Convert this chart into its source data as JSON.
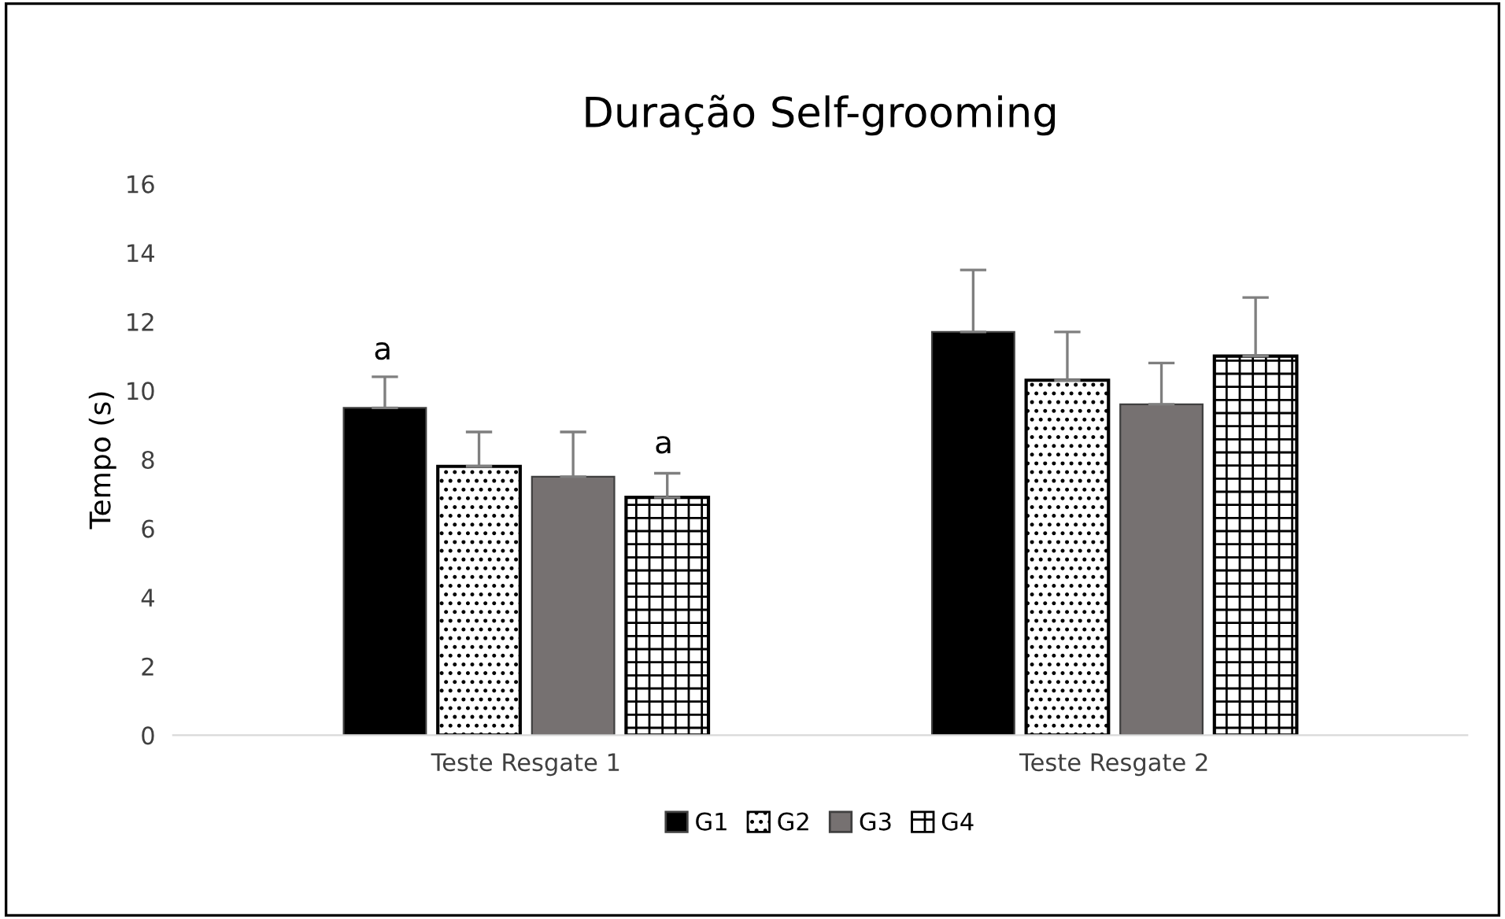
{
  "chart_data": {
    "type": "bar",
    "title": "Duração Self-grooming",
    "ylabel": "Tempo (s)",
    "categories": [
      "Teste Resgate 1",
      "Teste Resgate 2"
    ],
    "series": [
      {
        "name": "G1",
        "color": "#000000",
        "values": [
          9.5,
          11.7
        ],
        "errors": [
          0.9,
          1.8
        ]
      },
      {
        "name": "G2",
        "color": "#000000",
        "values": [
          7.8,
          10.3
        ],
        "errors": [
          1.0,
          1.4
        ]
      },
      {
        "name": "G3",
        "color": "#767171",
        "values": [
          7.5,
          9.6
        ],
        "errors": [
          1.3,
          1.2
        ]
      },
      {
        "name": "G4",
        "color": "#000000",
        "values": [
          6.9,
          11.0
        ],
        "errors": [
          0.7,
          1.7
        ]
      }
    ],
    "ylim": [
      0,
      16
    ],
    "yticks": [
      0,
      2,
      4,
      6,
      8,
      10,
      12,
      14,
      16
    ],
    "grid": false,
    "legend": "bottom",
    "annotations": [
      "a",
      "a"
    ]
  }
}
